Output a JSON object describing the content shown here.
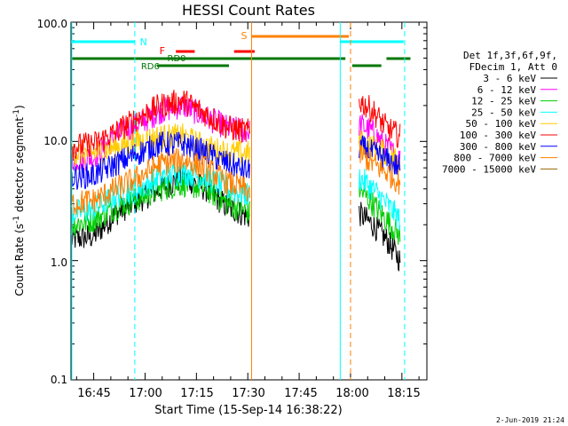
{
  "chart_data": {
    "type": "line",
    "title": "HESSI Count Rates",
    "xlabel": "Start Time (15-Sep-14 16:38:22)",
    "ylabel_main": "Count Rate (s",
    "ylabel_sup1": "-1",
    "ylabel_mid": " detector segment",
    "ylabel_sup2": "-1",
    "ylabel_end": ")",
    "y_scale": "log",
    "ylim": [
      0.1,
      100.0
    ],
    "y_ticks": [
      "0.1",
      "1.0",
      "10.0",
      "100.0"
    ],
    "x_ticks": [
      "16:45",
      "17:00",
      "17:15",
      "17:30",
      "17:45",
      "18:00",
      "18:15"
    ],
    "legend_header": [
      "Det 1f,3f,6f,9f,",
      "FDecim 1, Att 0"
    ],
    "footer_date": "2-Jun-2019 21:24",
    "series": [
      {
        "name": "3 - 6 keV",
        "color": "#000000",
        "pre": [
          1.5,
          1.6,
          2.5,
          3.2,
          4.0,
          5.0,
          4.0,
          2.8,
          2.3
        ],
        "post": [
          2.5,
          2.0,
          1.5,
          1.0
        ]
      },
      {
        "name": "6 - 12 keV",
        "color": "#ff00ff",
        "pre": [
          7.0,
          7.4,
          11.0,
          14.0,
          18.0,
          20.0,
          16.0,
          13.0,
          12.0
        ],
        "post": [
          14.0,
          12.0,
          9.0,
          7.0
        ]
      },
      {
        "name": "12 - 25 keV",
        "color": "#00cc00",
        "pre": [
          2.0,
          2.2,
          2.8,
          3.3,
          4.0,
          4.4,
          4.0,
          3.0,
          2.5
        ],
        "post": [
          4.0,
          3.0,
          2.2,
          1.6
        ]
      },
      {
        "name": "25 - 50 keV",
        "color": "#00ffff",
        "pre": [
          2.5,
          2.7,
          3.5,
          4.0,
          5.0,
          5.5,
          5.0,
          4.0,
          3.5
        ],
        "post": [
          5.0,
          4.0,
          3.0,
          2.2
        ]
      },
      {
        "name": "50 - 100 keV",
        "color": "#ffcc00",
        "pre": [
          8.0,
          8.0,
          9.0,
          10.0,
          11.0,
          11.0,
          9.0,
          8.0,
          8.0
        ],
        "post": [
          10.0,
          9.0,
          8.0,
          7.0
        ]
      },
      {
        "name": "100 - 300 keV",
        "color": "#ff0000",
        "pre": [
          9.0,
          9.5,
          12.0,
          16.0,
          20.0,
          22.0,
          17.0,
          13.0,
          12.0
        ],
        "post": [
          22.0,
          18.0,
          13.0,
          11.0
        ]
      },
      {
        "name": "300 - 800 keV",
        "color": "#0000ff",
        "pre": [
          5.0,
          5.2,
          6.5,
          8.0,
          9.5,
          9.5,
          8.0,
          6.5,
          5.5
        ],
        "post": [
          9.0,
          8.0,
          7.0,
          6.0
        ]
      },
      {
        "name": "800 - 7000 keV",
        "color": "#ff8000",
        "pre": [
          3.0,
          3.2,
          4.0,
          5.0,
          6.5,
          7.0,
          6.0,
          4.5,
          3.8
        ],
        "post": [
          8.0,
          6.5,
          5.5,
          4.5
        ]
      },
      {
        "name": "7000 - 15000 keV",
        "color": "#996600",
        "pre": [],
        "post": []
      }
    ],
    "flags": [
      {
        "label": "N",
        "color": "#00ffff"
      },
      {
        "label": "F",
        "color": "#ff0000"
      },
      {
        "label": "S",
        "color": "#ff8000"
      },
      {
        "label": "RD0",
        "color": "#007700"
      },
      {
        "label": "RD6",
        "color": "#007700"
      }
    ]
  }
}
